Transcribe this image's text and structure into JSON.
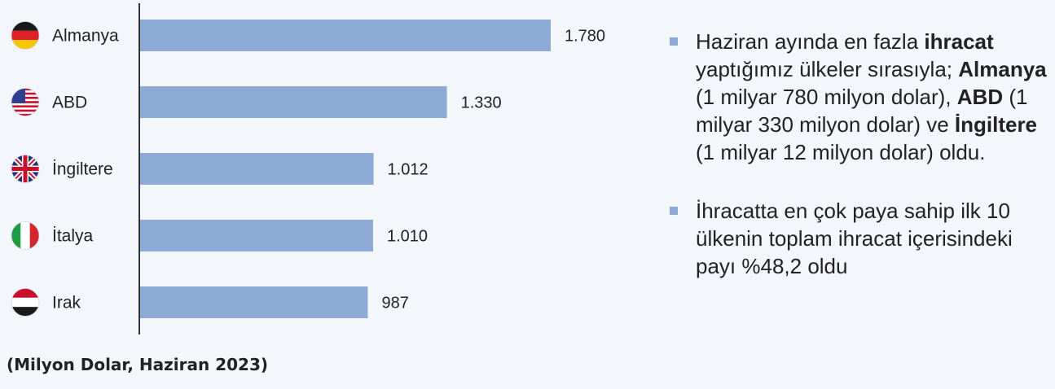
{
  "chart_data": {
    "type": "bar",
    "orientation": "horizontal",
    "categories": [
      "Almanya",
      "ABD",
      "İngiltere",
      "İtalya",
      "Irak"
    ],
    "values": [
      1780,
      1330,
      1012,
      1010,
      987
    ],
    "value_labels": [
      "1.780",
      "1.330",
      "1.012",
      "1.010",
      "987"
    ],
    "bar_color": "#8eabd8",
    "grid": false,
    "footnote": "(Milyon Dolar, Haziran 2023)"
  },
  "flags": [
    "flag-germany",
    "flag-usa",
    "flag-uk",
    "flag-italy",
    "flag-iraq"
  ],
  "notes": [
    {
      "s1": "Haziran ayında en fazla ",
      "b1": "ihracat",
      "s2": " yaptığımız ülkeler sırasıyla; ",
      "b2": "Almanya",
      "s3": " (1 milyar 780 milyon dolar), ",
      "b3": "ABD",
      "s4": " (1 milyar 330 milyon dolar) ve ",
      "b4": "İngiltere",
      "s5": " (1 milyar 12 milyon dolar) oldu."
    },
    {
      "s1": "İhracatta en çok paya sahip ilk 10 ülkenin toplam ihracat içerisindeki payı %48,2 oldu"
    }
  ]
}
